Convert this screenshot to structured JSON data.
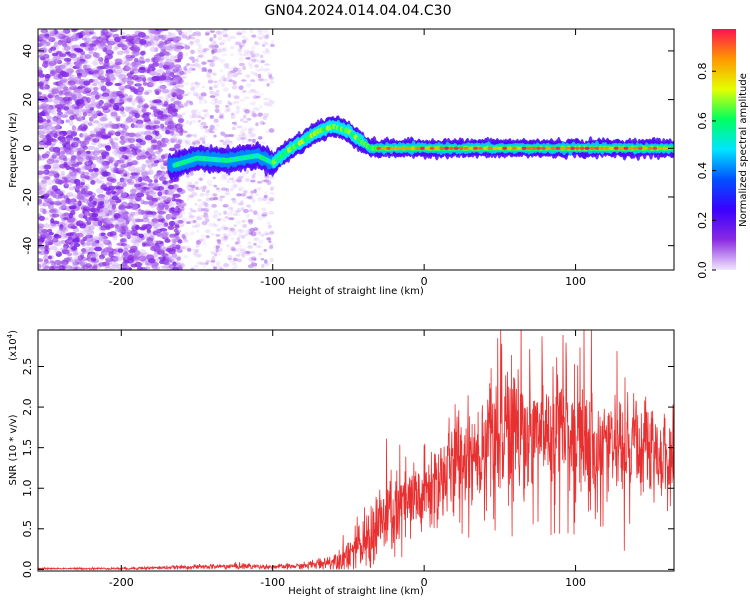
{
  "title": "GN04.2024.014.04.04.C30",
  "chart_data": [
    {
      "type": "heatmap",
      "xlabel": "Height of straight line (km)",
      "ylabel": "Frequency (Hz)",
      "xlim": [
        -255,
        165
      ],
      "ylim": [
        -50,
        49
      ],
      "xticks": [
        -200,
        -100,
        0,
        100
      ],
      "yticks": [
        -40,
        -20,
        0,
        20,
        40
      ],
      "colorbar": {
        "label": "Normalized spectral amplitude",
        "range": [
          0,
          0.97
        ],
        "ticks": [
          0.0,
          0.2,
          0.4,
          0.6,
          0.8
        ],
        "colormap": [
          "#f2e6ff",
          "#8a2be2",
          "#3b00ff",
          "#0050ff",
          "#00e5ff",
          "#00ff60",
          "#e5ff00",
          "#ff9900",
          "#ff1050"
        ]
      },
      "ridge": {
        "x": [
          -165,
          -150,
          -130,
          -110,
          -100,
          -90,
          -80,
          -70,
          -60,
          -50,
          -40,
          -35,
          -20,
          0,
          50,
          100,
          165
        ],
        "y": [
          -7,
          -4,
          -5,
          -3,
          -6,
          -1,
          3,
          7,
          9,
          7,
          2,
          0,
          0,
          0,
          0,
          0,
          0
        ],
        "peak_amplitude": 0.97
      }
    },
    {
      "type": "line",
      "xlabel": "Height of straight line (km)",
      "ylabel": "SNR (10 * v/v)",
      "yscale_label": "(x10",
      "yscale_exp": "4",
      "xlim": [
        -255,
        165
      ],
      "ylim": [
        -0.02,
        2.95
      ],
      "xticks": [
        -200,
        -100,
        0,
        100
      ],
      "yticks": [
        0.0,
        0.5,
        1.0,
        1.5,
        2.0,
        2.5
      ],
      "series": [
        {
          "color": "#e83030",
          "envelope": {
            "x": [
              -255,
              -200,
              -150,
              -120,
              -100,
              -80,
              -60,
              -40,
              -30,
              -20,
              0,
              10,
              30,
              50,
              70,
              90,
              100,
              120,
              140,
              165
            ],
            "mean": [
              0.01,
              0.01,
              0.03,
              0.04,
              0.03,
              0.04,
              0.1,
              0.3,
              0.55,
              0.7,
              0.9,
              1.1,
              1.45,
              1.6,
              1.65,
              1.7,
              1.55,
              1.5,
              1.45,
              1.35
            ],
            "spread": [
              0.005,
              0.01,
              0.02,
              0.03,
              0.02,
              0.03,
              0.08,
              0.25,
              0.4,
              0.45,
              0.4,
              0.45,
              0.55,
              0.6,
              0.65,
              0.6,
              0.55,
              0.5,
              0.45,
              0.4
            ]
          }
        }
      ]
    }
  ]
}
